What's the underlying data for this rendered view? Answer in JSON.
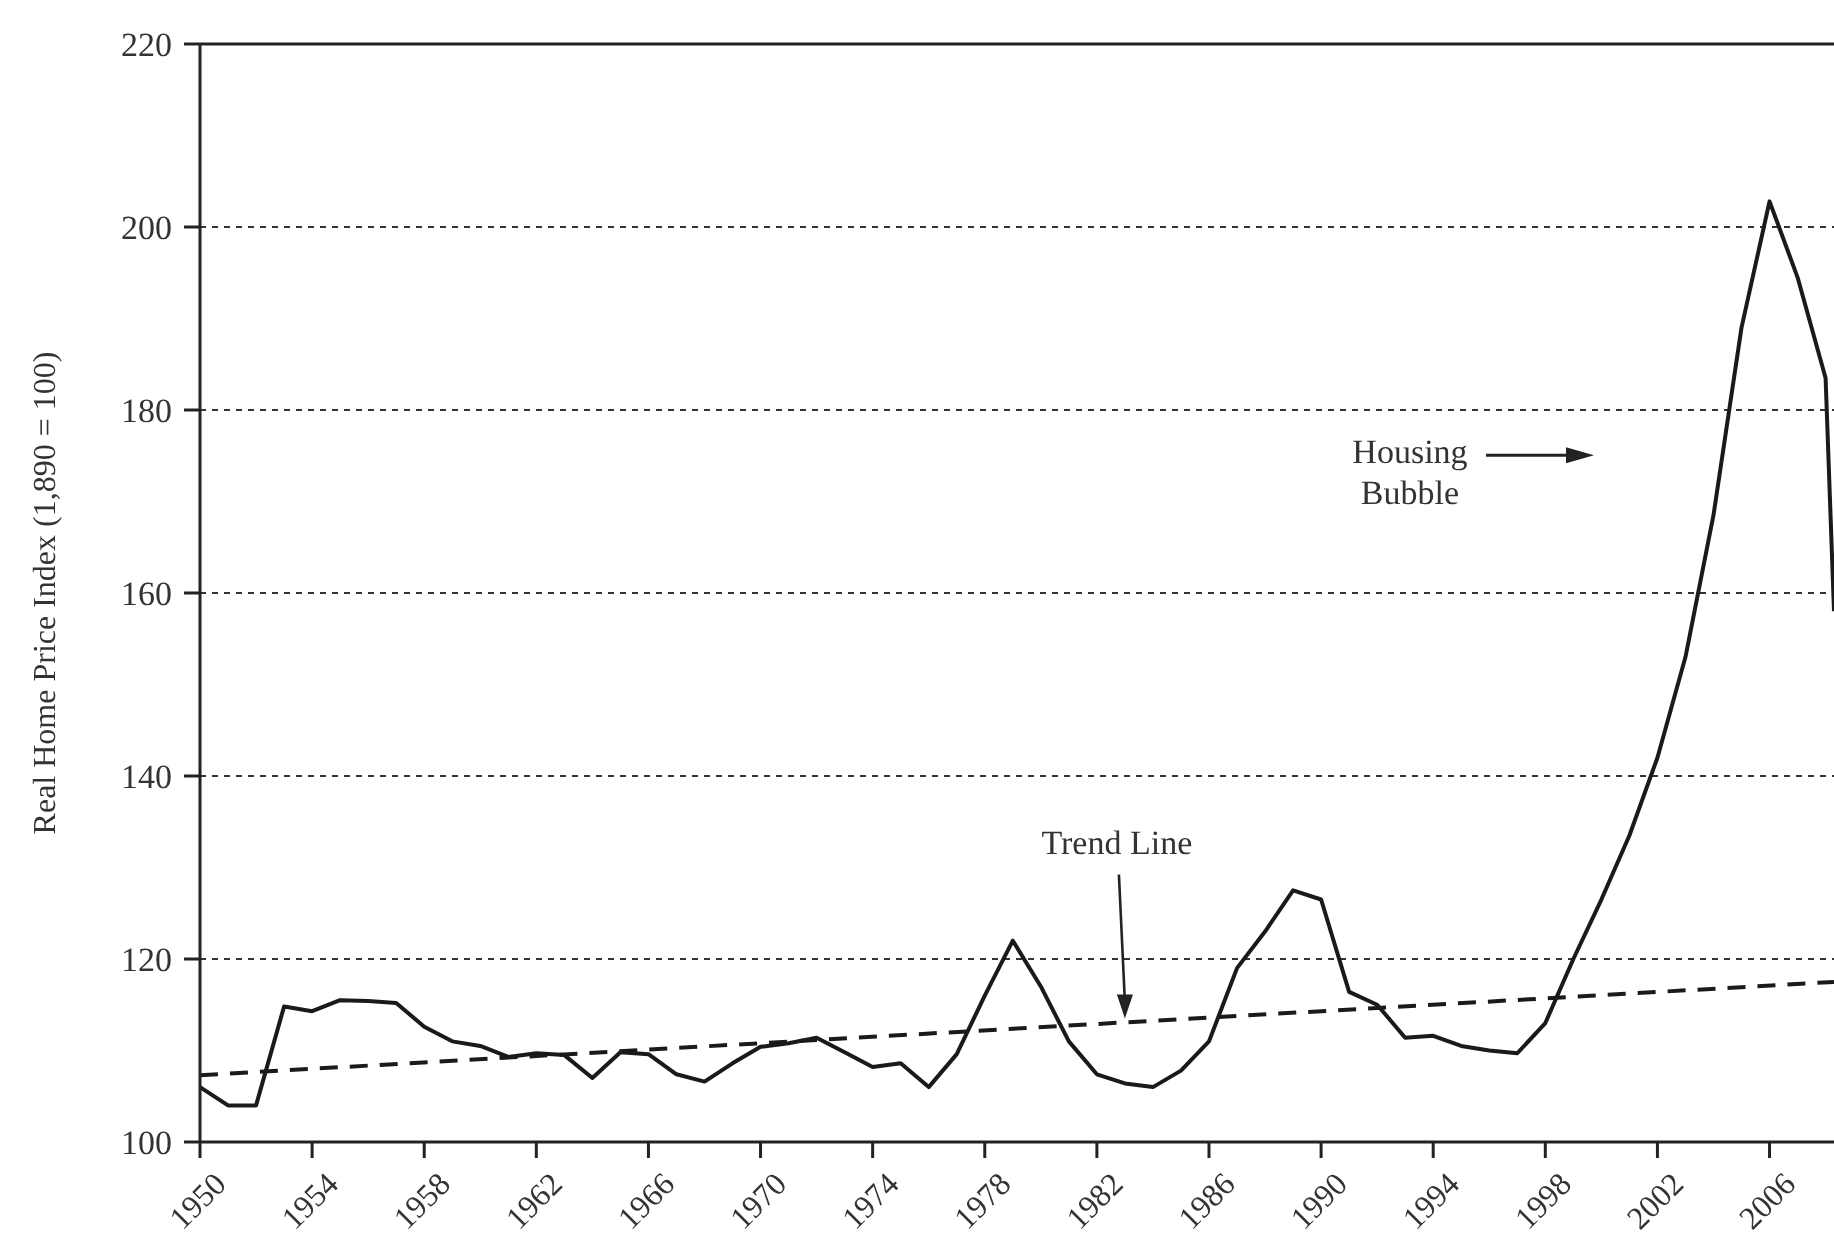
{
  "chart_data": {
    "type": "line",
    "ylabel": "Real Home Price Index (1,890 = 100)",
    "xlim": [
      1950,
      2008.3
    ],
    "xticks": [
      1950,
      1954,
      1958,
      1962,
      1966,
      1970,
      1974,
      1978,
      1982,
      1986,
      1990,
      1994,
      1998,
      2002,
      2006
    ],
    "ylim": [
      100,
      220
    ],
    "yticks": [
      100,
      120,
      140,
      160,
      180,
      200,
      220
    ],
    "grid": "y",
    "series": [
      {
        "color": "#1a1a1a",
        "line_style": "solid",
        "x": [
          1950,
          1951,
          1952,
          1953,
          1954,
          1955,
          1956,
          1957,
          1958,
          1959,
          1960,
          1961,
          1962,
          1963,
          1964,
          1965,
          1966,
          1967,
          1968,
          1969,
          1970,
          1971,
          1972,
          1973,
          1974,
          1975,
          1976,
          1977,
          1978,
          1979,
          1980,
          1981,
          1982,
          1983,
          1984,
          1985,
          1986,
          1987,
          1988,
          1989,
          1990,
          1991,
          1992,
          1993,
          1994,
          1995,
          1996,
          1997,
          1998,
          1999,
          2000,
          2001,
          2002,
          2003,
          2004,
          2005,
          2006,
          2007,
          2008,
          2008.3
        ],
        "values": [
          106,
          104,
          104,
          114.8,
          114.3,
          115.5,
          115.4,
          115.2,
          112.6,
          111,
          110.5,
          109.3,
          109.7,
          109.5,
          107,
          109.8,
          109.6,
          107.4,
          106.6,
          108.6,
          110.4,
          110.8,
          111.4,
          109.8,
          108.2,
          108.6,
          106,
          109.6,
          116,
          122,
          117,
          111,
          107.4,
          106.4,
          106,
          107.8,
          111,
          119,
          123,
          127.5,
          126.5,
          116.4,
          115,
          111.4,
          111.6,
          110.5,
          110,
          109.7,
          113,
          120,
          126.5,
          133.5,
          142,
          153,
          168.5,
          189,
          202.8,
          194.5,
          183.5,
          158
        ]
      },
      {
        "type": "line",
        "color": "#1a1a1a",
        "line_style": "dashed",
        "x": [
          1950,
          2008.3
        ],
        "values": [
          107.3,
          117.5
        ]
      }
    ],
    "annotations": [
      {
        "text": "Trend Line",
        "x": 1983,
        "y": 113.5
      },
      "Housing Bubble"
    ]
  }
}
